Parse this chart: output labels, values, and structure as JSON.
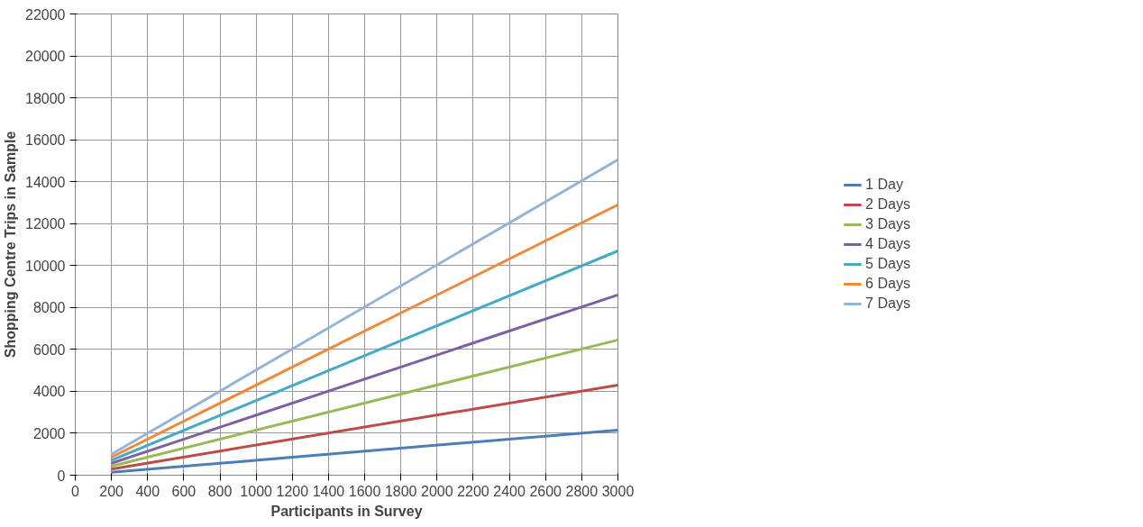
{
  "chart_data": {
    "type": "line",
    "xlabel": "Participants in Survey",
    "ylabel": "Shopping Centre Trips in Sample",
    "x": [
      200,
      3000
    ],
    "series": [
      {
        "name": "1 Day",
        "color": "#4a7ebb",
        "values": [
          140,
          2150
        ]
      },
      {
        "name": "2 Days",
        "color": "#be4b48",
        "values": [
          290,
          4300
        ]
      },
      {
        "name": "3 Days",
        "color": "#98b954",
        "values": [
          430,
          6450
        ]
      },
      {
        "name": "4 Days",
        "color": "#7d60a0",
        "values": [
          570,
          8600
        ]
      },
      {
        "name": "5 Days",
        "color": "#46aac5",
        "values": [
          710,
          10700
        ]
      },
      {
        "name": "6 Days",
        "color": "#f08a3a",
        "values": [
          860,
          12900
        ]
      },
      {
        "name": "7 Days",
        "color": "#95b3d7",
        "values": [
          1000,
          15050
        ]
      }
    ],
    "xlim": [
      0,
      3000
    ],
    "xticks": [
      0,
      200,
      400,
      600,
      800,
      1000,
      1200,
      1400,
      1600,
      1800,
      2000,
      2200,
      2400,
      2600,
      2800,
      3000
    ],
    "ylim": [
      0,
      22000
    ],
    "yticks": [
      0,
      2000,
      4000,
      6000,
      8000,
      10000,
      12000,
      14000,
      16000,
      18000,
      20000,
      22000
    ],
    "grid": true,
    "legend": "right",
    "marker": "none",
    "line_style": "solid"
  }
}
